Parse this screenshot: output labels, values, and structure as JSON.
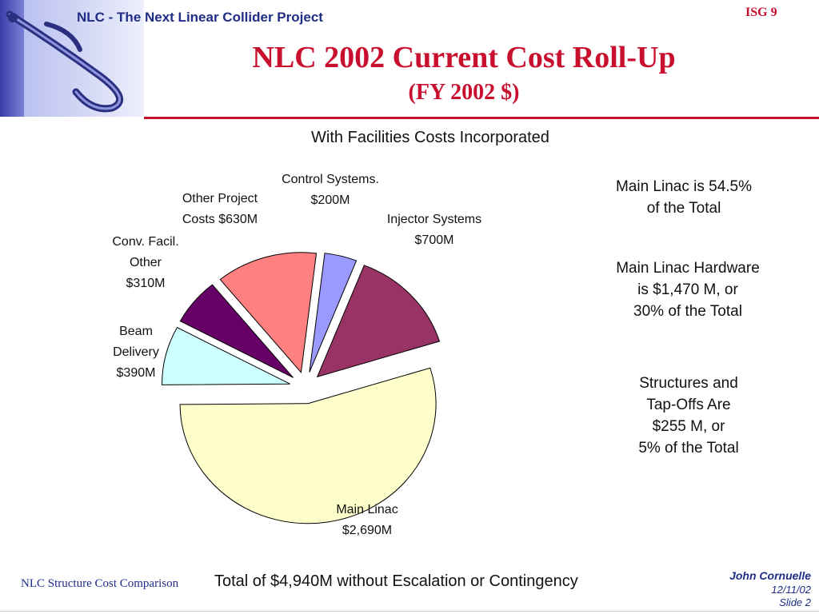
{
  "header": {
    "project": "NLC - The Next Linear Collider Project",
    "badge": "ISG 9",
    "title": "NLC 2002 Current Cost Roll-Up",
    "subtitle": "(FY 2002 $)"
  },
  "chart_subtitle": "With Facilities Costs Incorporated",
  "notes": {
    "n1_l1": "Main Linac is 54.5%",
    "n1_l2": "of the Total",
    "n2_l1": "Main Linac Hardware",
    "n2_l2": "is $1,470 M, or",
    "n2_l3": "30% of the Total",
    "n3_l1": "Structures and",
    "n3_l2": "Tap-Offs Are",
    "n3_l3": "$255 M, or",
    "n3_l4": "5% of the Total"
  },
  "footer": {
    "left": "NLC Structure Cost Comparison",
    "total": "Total of $4,940M without Escalation or Contingency",
    "author": "John Cornuelle",
    "date": "12/11/02",
    "slide": "Slide 2"
  },
  "chart_data": {
    "type": "pie",
    "title": "With Facilities Costs Incorporated",
    "unit": "$M",
    "slices": [
      {
        "key": "control",
        "label_l1": "Control Systems.",
        "label_l2": "$200M",
        "value": 200,
        "color": "#9999ff"
      },
      {
        "key": "injector",
        "label_l1": "Injector Systems",
        "label_l2": "$700M",
        "value": 700,
        "color": "#993366"
      },
      {
        "key": "main-linac",
        "label_l1": "Main Linac",
        "label_l2": "$2,690M",
        "value": 2690,
        "color": "#ffffcc"
      },
      {
        "key": "beam-delivery",
        "label_l1": "Beam",
        "label_l2": "Delivery",
        "label_l3": "$390M",
        "value": 390,
        "color": "#ccffff"
      },
      {
        "key": "conv-facil",
        "label_l1": "Conv. Facil.",
        "label_l2": "Other",
        "label_l3": "$310M",
        "value": 310,
        "color": "#660066"
      },
      {
        "key": "other-project",
        "label_l1": "Other Project",
        "label_l2": "Costs $630M",
        "value": 630,
        "color": "#ff8080"
      }
    ]
  }
}
